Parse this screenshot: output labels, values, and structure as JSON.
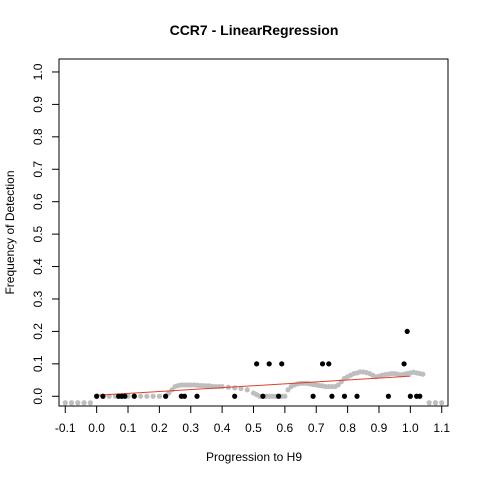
{
  "chart_data": {
    "type": "scatter",
    "title": "CCR7 - LinearRegression",
    "xlabel": "Progression to H9",
    "ylabel": "Frequency of Detection",
    "xlim": [
      -0.12,
      1.12
    ],
    "ylim": [
      -0.03,
      1.04
    ],
    "x_ticks": [
      -0.1,
      0.0,
      0.1,
      0.2,
      0.3,
      0.4,
      0.5,
      0.6,
      0.7,
      0.8,
      0.9,
      1.0,
      1.1
    ],
    "x_tick_labels": [
      "-0.1",
      "0.0",
      "0.1",
      "0.2",
      "0.3",
      "0.4",
      "0.5",
      "0.6",
      "0.7",
      "0.8",
      "0.9",
      "1.0",
      "1.1"
    ],
    "y_ticks": [
      0.0,
      0.1,
      0.2,
      0.3,
      0.4,
      0.5,
      0.6,
      0.7,
      0.8,
      0.9,
      1.0
    ],
    "y_tick_labels": [
      "0.0",
      "0.1",
      "0.2",
      "0.3",
      "0.4",
      "0.5",
      "0.6",
      "0.7",
      "0.8",
      "0.9",
      "1.0"
    ],
    "grid": false,
    "colors": {
      "observed": "#000000",
      "smoothed": "#bebebe",
      "fit": "#e0402a"
    },
    "series": [
      {
        "role": "smoothed",
        "x": [
          -0.1,
          -0.08,
          -0.06,
          -0.04,
          -0.02,
          0.0,
          0.02,
          0.04,
          0.06,
          0.08,
          0.1,
          0.12,
          0.14,
          0.16,
          0.18,
          0.2,
          0.22,
          0.23,
          0.24,
          0.25,
          0.26,
          0.27,
          0.28,
          0.29,
          0.3,
          0.31,
          0.32,
          0.33,
          0.34,
          0.35,
          0.36,
          0.37,
          0.38,
          0.39,
          0.4,
          0.42,
          0.44,
          0.46,
          0.48,
          0.5,
          0.51,
          0.52,
          0.53,
          0.54,
          0.55,
          0.56,
          0.57,
          0.58,
          0.59,
          0.6,
          0.61,
          0.62,
          0.63,
          0.64,
          0.65,
          0.66,
          0.67,
          0.68,
          0.69,
          0.7,
          0.71,
          0.72,
          0.73,
          0.74,
          0.75,
          0.76,
          0.77,
          0.78,
          0.79,
          0.8,
          0.81,
          0.82,
          0.83,
          0.84,
          0.85,
          0.86,
          0.87,
          0.88,
          0.89,
          0.9,
          0.91,
          0.92,
          0.93,
          0.94,
          0.95,
          0.96,
          0.97,
          0.98,
          0.99,
          1.0,
          1.01,
          1.02,
          1.03,
          1.04,
          1.06,
          1.08,
          1.1
        ],
        "y": [
          -0.02,
          -0.02,
          -0.02,
          -0.02,
          -0.02,
          0.0,
          0.0,
          0.0,
          0.0,
          0.0,
          0.0,
          0.0,
          0.0,
          0.0,
          0.0,
          0.0,
          0.0,
          0.01,
          0.02,
          0.03,
          0.033,
          0.035,
          0.035,
          0.035,
          0.035,
          0.035,
          0.034,
          0.033,
          0.033,
          0.032,
          0.032,
          0.03,
          0.03,
          0.03,
          0.03,
          0.028,
          0.026,
          0.024,
          0.02,
          0.01,
          0.005,
          0.0,
          0.0,
          0.0,
          0.0,
          0.0,
          0.0,
          0.0,
          0.0,
          0.0,
          0.02,
          0.03,
          0.035,
          0.038,
          0.04,
          0.04,
          0.04,
          0.038,
          0.036,
          0.035,
          0.033,
          0.032,
          0.03,
          0.03,
          0.03,
          0.03,
          0.035,
          0.045,
          0.055,
          0.06,
          0.065,
          0.07,
          0.072,
          0.075,
          0.075,
          0.073,
          0.07,
          0.065,
          0.06,
          0.062,
          0.065,
          0.067,
          0.068,
          0.07,
          0.07,
          0.068,
          0.066,
          0.068,
          0.07,
          0.072,
          0.074,
          0.072,
          0.07,
          0.068,
          -0.02,
          -0.02,
          -0.02
        ]
      },
      {
        "role": "observed",
        "x": [
          0.0,
          0.02,
          0.07,
          0.08,
          0.09,
          0.12,
          0.22,
          0.27,
          0.28,
          0.32,
          0.44,
          0.51,
          0.53,
          0.55,
          0.58,
          0.59,
          0.69,
          0.72,
          0.74,
          0.75,
          0.79,
          0.83,
          0.93,
          0.98,
          0.99,
          1.0,
          1.02,
          1.03
        ],
        "y": [
          0.0,
          0.0,
          0.0,
          0.0,
          0.0,
          0.0,
          0.0,
          0.0,
          0.0,
          0.0,
          0.0,
          0.1,
          0.0,
          0.1,
          0.0,
          0.1,
          0.0,
          0.1,
          0.1,
          0.0,
          0.0,
          0.0,
          0.0,
          0.1,
          0.2,
          0.0,
          0.0,
          0.0
        ]
      },
      {
        "role": "fit",
        "x": [
          0.0,
          1.0
        ],
        "y": [
          0.003,
          0.062
        ]
      }
    ]
  }
}
